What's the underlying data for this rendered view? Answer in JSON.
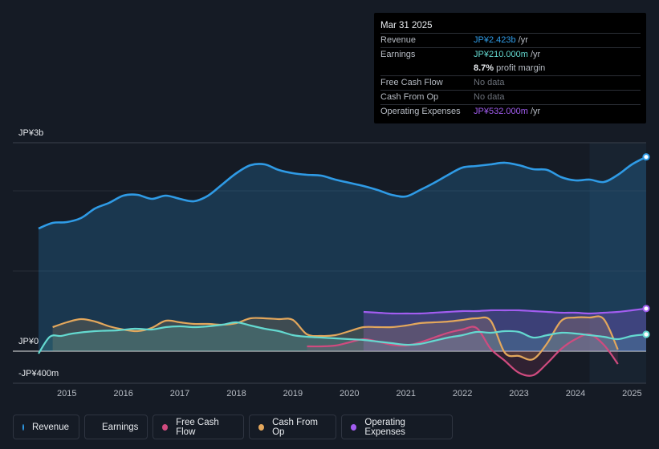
{
  "tooltip": {
    "date": "Mar 31 2025",
    "rows": [
      {
        "label": "Revenue",
        "value": "JP¥2.423b",
        "unit": " /yr",
        "color": "#2f9be6"
      },
      {
        "label": "Earnings",
        "value": "JP¥210.000m",
        "unit": " /yr",
        "color": "#64d9d0"
      },
      {
        "label": "",
        "value": "8.7%",
        "unit": " profit margin",
        "color": "#ffffff"
      },
      {
        "label": "Free Cash Flow",
        "value": "No data",
        "unit": "",
        "color": "#6b7079"
      },
      {
        "label": "Cash From Op",
        "value": "No data",
        "unit": "",
        "color": "#6b7079"
      },
      {
        "label": "Operating Expenses",
        "value": "JP¥532.000m",
        "unit": " /yr",
        "color": "#a25df0"
      }
    ]
  },
  "colors": {
    "revenue": "#2f9be6",
    "earnings": "#64d9d0",
    "fcf": "#d04b7f",
    "cfo": "#e3a75c",
    "opex": "#a25df0"
  },
  "chart_data": {
    "type": "line",
    "title": "",
    "ylabel_top": "JP¥3b",
    "ylabel_zero": "JP¥0",
    "ylabel_bottom": "-JP¥400m",
    "ylim": [
      -400,
      2600
    ],
    "xlim": [
      2014.5,
      2025.25
    ],
    "x_ticks": [
      "2015",
      "2016",
      "2017",
      "2018",
      "2019",
      "2020",
      "2021",
      "2022",
      "2023",
      "2024",
      "2025"
    ],
    "highlight_from": 2024.25,
    "series": [
      {
        "name": "Revenue",
        "color": "#2f9be6",
        "x": [
          2014.5,
          2014.75,
          2015.0,
          2015.25,
          2015.5,
          2015.75,
          2016.0,
          2016.25,
          2016.5,
          2016.75,
          2017.0,
          2017.25,
          2017.5,
          2017.75,
          2018.0,
          2018.25,
          2018.5,
          2018.75,
          2019.0,
          2019.25,
          2019.5,
          2019.75,
          2020.0,
          2020.25,
          2020.5,
          2020.75,
          2021.0,
          2021.25,
          2021.5,
          2021.75,
          2022.0,
          2022.25,
          2022.5,
          2022.75,
          2023.0,
          2023.25,
          2023.5,
          2023.75,
          2024.0,
          2024.25,
          2024.5,
          2024.75,
          2025.0,
          2025.25
        ],
        "values": [
          1530,
          1600,
          1610,
          1660,
          1780,
          1850,
          1940,
          1950,
          1900,
          1940,
          1900,
          1870,
          1940,
          2080,
          2220,
          2320,
          2330,
          2260,
          2220,
          2200,
          2190,
          2140,
          2100,
          2060,
          2010,
          1950,
          1930,
          2010,
          2100,
          2200,
          2290,
          2310,
          2330,
          2350,
          2320,
          2270,
          2260,
          2170,
          2130,
          2140,
          2110,
          2200,
          2330,
          2423
        ]
      },
      {
        "name": "Earnings",
        "color": "#64d9d0",
        "x": [
          2014.5,
          2014.7,
          2014.9,
          2015.1,
          2015.5,
          2015.9,
          2016.2,
          2016.5,
          2016.75,
          2017.0,
          2017.25,
          2017.5,
          2017.75,
          2018.0,
          2018.25,
          2018.5,
          2018.75,
          2019.0,
          2019.25,
          2019.5,
          2019.75,
          2020.0,
          2020.25,
          2020.5,
          2020.75,
          2021.0,
          2021.25,
          2021.5,
          2021.75,
          2022.0,
          2022.25,
          2022.5,
          2022.75,
          2023.0,
          2023.25,
          2023.5,
          2023.75,
          2024.0,
          2024.25,
          2024.5,
          2024.75,
          2025.0,
          2025.25
        ],
        "values": [
          -30,
          180,
          190,
          220,
          250,
          260,
          280,
          270,
          300,
          310,
          300,
          310,
          330,
          360,
          320,
          280,
          250,
          200,
          180,
          170,
          160,
          150,
          140,
          120,
          100,
          80,
          90,
          130,
          170,
          200,
          240,
          230,
          250,
          240,
          170,
          200,
          230,
          220,
          200,
          180,
          150,
          190,
          210
        ]
      },
      {
        "name": "Free Cash Flow",
        "color": "#d04b7f",
        "x": [
          2019.25,
          2019.5,
          2019.75,
          2020.0,
          2020.25,
          2020.5,
          2020.75,
          2021.0,
          2021.25,
          2021.5,
          2021.75,
          2022.0,
          2022.25,
          2022.5,
          2022.75,
          2023.0,
          2023.25,
          2023.5,
          2023.75,
          2024.0,
          2024.25,
          2024.5,
          2024.75
        ],
        "values": [
          60,
          60,
          70,
          110,
          150,
          120,
          80,
          70,
          110,
          170,
          230,
          270,
          290,
          30,
          -120,
          -270,
          -300,
          -150,
          30,
          150,
          210,
          80,
          -160
        ]
      },
      {
        "name": "Cash From Op",
        "color": "#e3a75c",
        "x": [
          2014.75,
          2015.0,
          2015.25,
          2015.5,
          2015.75,
          2016.0,
          2016.25,
          2016.5,
          2016.75,
          2017.0,
          2017.25,
          2017.5,
          2017.75,
          2018.0,
          2018.25,
          2018.5,
          2018.75,
          2019.0,
          2019.25,
          2019.5,
          2019.75,
          2020.0,
          2020.25,
          2020.5,
          2020.75,
          2021.0,
          2021.25,
          2021.5,
          2021.75,
          2022.0,
          2022.25,
          2022.5,
          2022.75,
          2023.0,
          2023.25,
          2023.5,
          2023.75,
          2024.0,
          2024.25,
          2024.5,
          2024.75
        ],
        "values": [
          300,
          360,
          400,
          370,
          310,
          270,
          250,
          290,
          380,
          360,
          340,
          340,
          330,
          350,
          410,
          410,
          400,
          390,
          210,
          190,
          200,
          250,
          300,
          300,
          300,
          320,
          350,
          360,
          370,
          390,
          410,
          380,
          -20,
          -60,
          -100,
          100,
          380,
          420,
          420,
          400,
          20
        ]
      },
      {
        "name": "Operating Expenses",
        "color": "#a25df0",
        "x": [
          2020.25,
          2020.5,
          2020.75,
          2021.0,
          2021.25,
          2021.5,
          2021.75,
          2022.0,
          2022.25,
          2022.5,
          2022.75,
          2023.0,
          2023.25,
          2023.5,
          2023.75,
          2024.0,
          2024.25,
          2024.5,
          2024.75,
          2025.0,
          2025.25
        ],
        "values": [
          490,
          480,
          470,
          470,
          470,
          480,
          490,
          500,
          500,
          510,
          510,
          510,
          500,
          490,
          480,
          480,
          470,
          480,
          490,
          510,
          532
        ]
      }
    ]
  },
  "legend": [
    {
      "label": "Revenue",
      "color": "#2f9be6"
    },
    {
      "label": "Earnings",
      "color": "#64d9d0"
    },
    {
      "label": "Free Cash Flow",
      "color": "#d04b7f"
    },
    {
      "label": "Cash From Op",
      "color": "#e3a75c"
    },
    {
      "label": "Operating Expenses",
      "color": "#a25df0"
    }
  ]
}
